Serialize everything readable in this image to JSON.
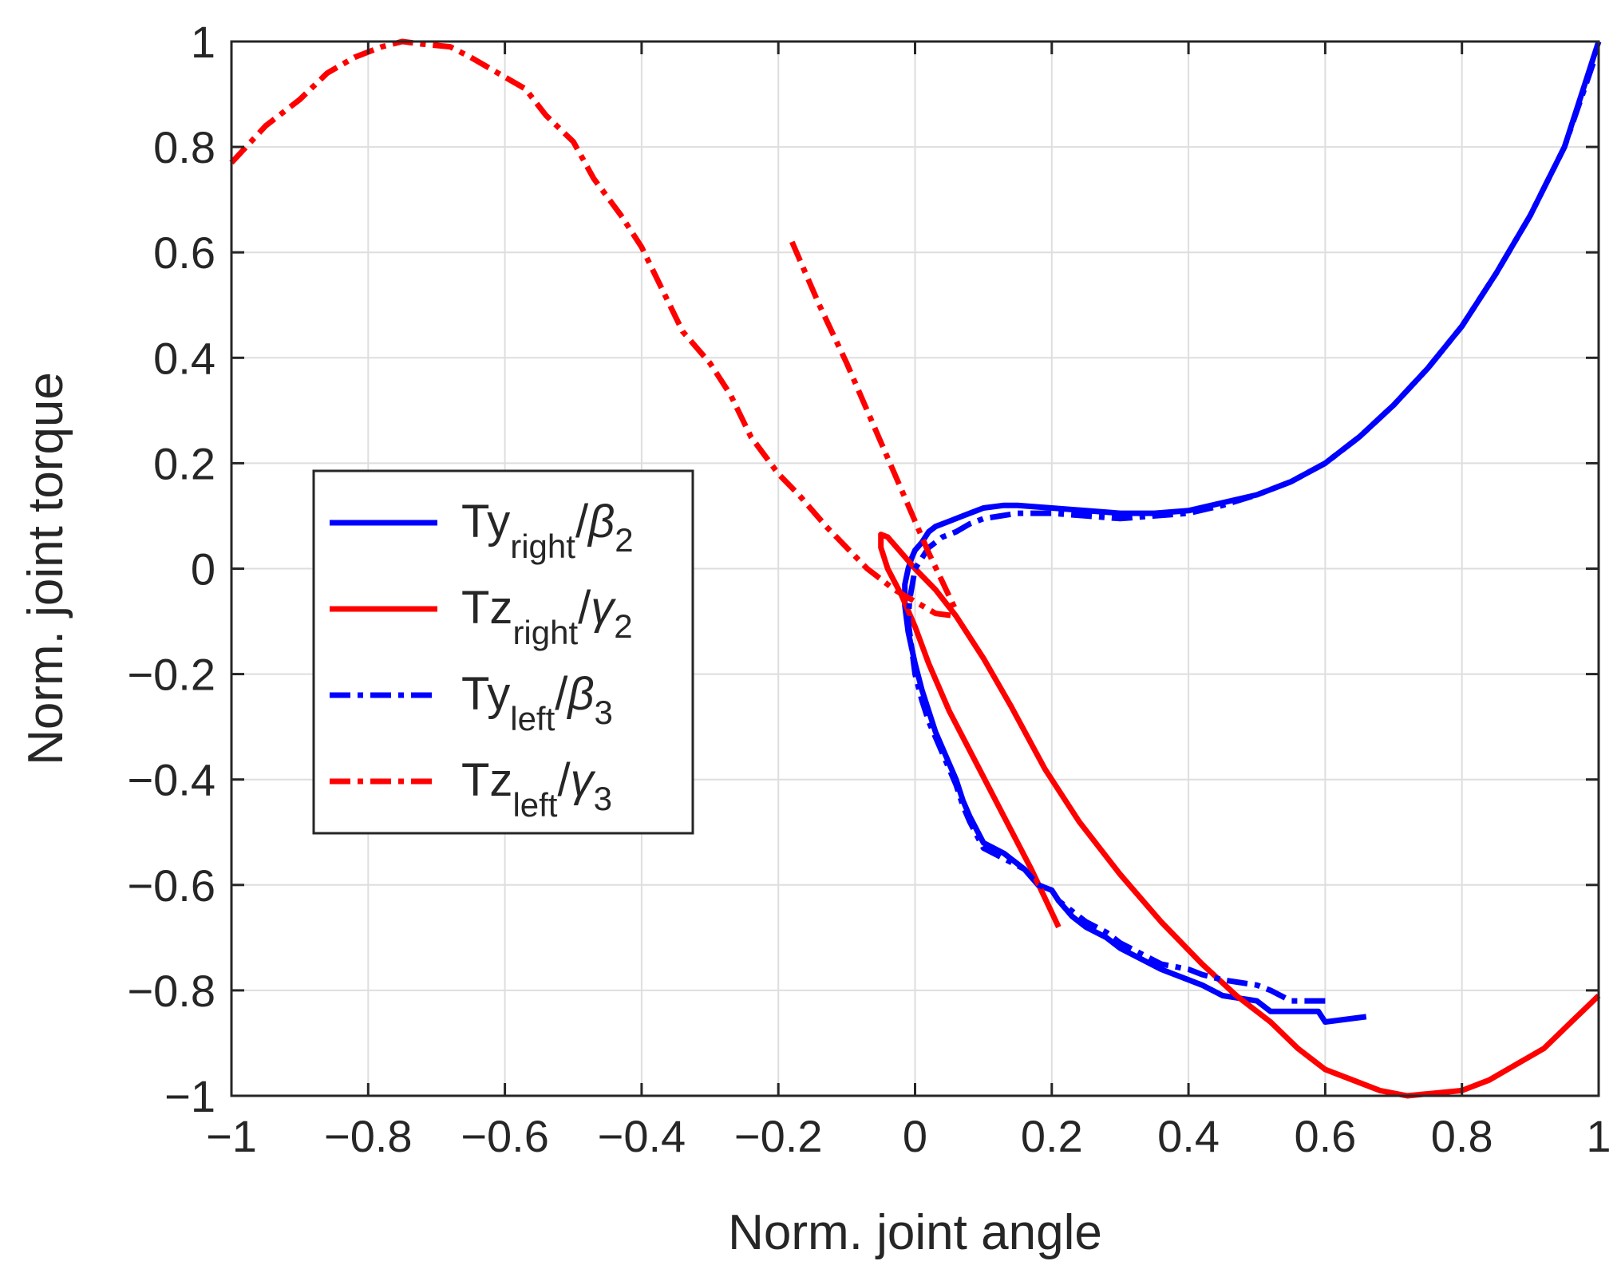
{
  "chart_data": {
    "type": "line",
    "title": "",
    "xlabel": "Norm. joint angle",
    "ylabel": "Norm. joint torque",
    "xlim": [
      -1,
      1
    ],
    "ylim": [
      -1,
      1
    ],
    "xticks": [
      -1,
      -0.8,
      -0.6,
      -0.4,
      -0.2,
      0,
      0.2,
      0.4,
      0.6,
      0.8,
      1
    ],
    "yticks": [
      -1,
      -0.8,
      -0.6,
      -0.4,
      -0.2,
      0,
      0.2,
      0.4,
      0.6,
      0.8,
      1
    ],
    "xtick_labels": [
      "−1",
      "−0.8",
      "−0.6",
      "−0.4",
      "−0.2",
      "0",
      "0.2",
      "0.4",
      "0.6",
      "0.8",
      "1"
    ],
    "ytick_labels": [
      "−1",
      "−0.8",
      "−0.6",
      "−0.4",
      "−0.2",
      "0",
      "0.2",
      "0.4",
      "0.6",
      "0.8",
      "1"
    ],
    "grid": true,
    "legend_position": "center-left",
    "series": [
      {
        "name": "Ty_right/β2",
        "legend": {
          "base": "Ty",
          "sub": "right",
          "sep": "/",
          "greek": "β",
          "greek_sub": "2"
        },
        "color": "#0000ff",
        "style": "solid",
        "x": [
          0.66,
          0.6,
          0.59,
          0.52,
          0.5,
          0.45,
          0.42,
          0.4,
          0.36,
          0.33,
          0.3,
          0.28,
          0.25,
          0.23,
          0.21,
          0.2,
          0.18,
          0.16,
          0.13,
          0.1,
          0.08,
          0.07,
          0.06,
          0.05,
          0.04,
          0.03,
          0.02,
          0.01,
          0.0,
          -0.01,
          -0.015,
          -0.015,
          -0.01,
          -0.005,
          0.0,
          0.01,
          0.02,
          0.03,
          0.05,
          0.07,
          0.09,
          0.1,
          0.13,
          0.15,
          0.2,
          0.25,
          0.3,
          0.35,
          0.4,
          0.45,
          0.5,
          0.55,
          0.6,
          0.65,
          0.7,
          0.75,
          0.8,
          0.85,
          0.9,
          0.95,
          1.0
        ],
        "y": [
          -0.85,
          -0.86,
          -0.84,
          -0.84,
          -0.82,
          -0.81,
          -0.79,
          -0.78,
          -0.76,
          -0.74,
          -0.72,
          -0.7,
          -0.68,
          -0.66,
          -0.63,
          -0.61,
          -0.6,
          -0.57,
          -0.54,
          -0.52,
          -0.47,
          -0.44,
          -0.4,
          -0.37,
          -0.34,
          -0.31,
          -0.27,
          -0.23,
          -0.18,
          -0.12,
          -0.07,
          -0.03,
          0.0,
          0.02,
          0.035,
          0.05,
          0.07,
          0.08,
          0.09,
          0.1,
          0.11,
          0.115,
          0.12,
          0.12,
          0.115,
          0.11,
          0.105,
          0.105,
          0.11,
          0.125,
          0.14,
          0.165,
          0.2,
          0.25,
          0.31,
          0.38,
          0.46,
          0.56,
          0.67,
          0.8,
          1.0
        ]
      },
      {
        "name": "Tz_right/γ2",
        "legend": {
          "base": "Tz",
          "sub": "right",
          "sep": "/",
          "greek": "γ",
          "greek_sub": "2"
        },
        "color": "#ff0000",
        "style": "solid",
        "x": [
          0.21,
          0.17,
          0.13,
          0.09,
          0.05,
          0.02,
          0.0,
          -0.02,
          -0.04,
          -0.05,
          -0.05,
          -0.04,
          -0.02,
          0.0,
          0.03,
          0.06,
          0.1,
          0.14,
          0.19,
          0.24,
          0.3,
          0.36,
          0.42,
          0.47,
          0.52,
          0.56,
          0.6,
          0.64,
          0.68,
          0.72,
          0.76,
          0.8,
          0.84,
          0.88,
          0.92,
          0.96,
          1.0
        ],
        "y": [
          -0.68,
          -0.57,
          -0.47,
          -0.37,
          -0.27,
          -0.18,
          -0.11,
          -0.05,
          0.0,
          0.04,
          0.065,
          0.06,
          0.03,
          0.0,
          -0.04,
          -0.09,
          -0.17,
          -0.26,
          -0.38,
          -0.48,
          -0.58,
          -0.67,
          -0.75,
          -0.81,
          -0.86,
          -0.91,
          -0.95,
          -0.97,
          -0.99,
          -1.0,
          -0.995,
          -0.99,
          -0.97,
          -0.94,
          -0.91,
          -0.86,
          -0.81
        ]
      },
      {
        "name": "Ty_left/β3",
        "legend": {
          "base": "Ty",
          "sub": "left",
          "sep": "/",
          "greek": "β",
          "greek_sub": "3"
        },
        "color": "#0000ff",
        "style": "dashdot",
        "x": [
          0.6,
          0.55,
          0.52,
          0.5,
          0.45,
          0.42,
          0.4,
          0.36,
          0.33,
          0.3,
          0.28,
          0.25,
          0.23,
          0.21,
          0.2,
          0.18,
          0.16,
          0.13,
          0.1,
          0.08,
          0.07,
          0.06,
          0.05,
          0.04,
          0.03,
          0.02,
          0.01,
          0.0,
          -0.005,
          -0.01,
          -0.008,
          -0.004,
          0.0,
          0.01,
          0.02,
          0.04,
          0.06,
          0.08,
          0.1,
          0.15,
          0.2,
          0.25,
          0.3,
          0.35,
          0.4,
          0.45,
          0.5,
          0.55,
          0.6,
          0.65,
          0.7,
          0.75,
          0.8,
          0.85,
          0.9,
          0.95,
          0.995
        ],
        "y": [
          -0.82,
          -0.82,
          -0.8,
          -0.79,
          -0.78,
          -0.77,
          -0.76,
          -0.75,
          -0.73,
          -0.71,
          -0.69,
          -0.67,
          -0.65,
          -0.63,
          -0.61,
          -0.6,
          -0.57,
          -0.55,
          -0.53,
          -0.48,
          -0.45,
          -0.41,
          -0.38,
          -0.35,
          -0.32,
          -0.29,
          -0.25,
          -0.2,
          -0.15,
          -0.1,
          -0.06,
          -0.03,
          0.0,
          0.02,
          0.04,
          0.06,
          0.07,
          0.085,
          0.095,
          0.105,
          0.105,
          0.1,
          0.095,
          0.1,
          0.105,
          0.12,
          0.14,
          0.165,
          0.2,
          0.25,
          0.31,
          0.38,
          0.46,
          0.56,
          0.67,
          0.8,
          0.97
        ]
      },
      {
        "name": "Tz_left/γ3",
        "legend": {
          "base": "Tz",
          "sub": "left",
          "sep": "/",
          "greek": "γ",
          "greek_sub": "3"
        },
        "color": "#ff0000",
        "style": "dashdot",
        "x": [
          -1.0,
          -0.95,
          -0.9,
          -0.86,
          -0.82,
          -0.78,
          -0.75,
          -0.72,
          -0.68,
          -0.65,
          -0.61,
          -0.57,
          -0.54,
          -0.5,
          -0.47,
          -0.43,
          -0.4,
          -0.37,
          -0.34,
          -0.3,
          -0.27,
          -0.24,
          -0.2,
          -0.17,
          -0.13,
          -0.1,
          -0.07,
          -0.05,
          -0.03,
          -0.01,
          0.01,
          0.03,
          0.06
        ],
        "y": [
          0.77,
          0.84,
          0.89,
          0.94,
          0.97,
          0.99,
          1.0,
          0.995,
          0.99,
          0.97,
          0.94,
          0.91,
          0.86,
          0.81,
          0.74,
          0.67,
          0.61,
          0.53,
          0.45,
          0.39,
          0.33,
          0.25,
          0.18,
          0.14,
          0.08,
          0.04,
          0.0,
          -0.02,
          -0.04,
          -0.055,
          -0.07,
          -0.085,
          -0.09
        ]
      },
      {
        "name": "Tz_left/γ3 (segment)",
        "color": "#ff0000",
        "style": "dashdot",
        "in_legend": false,
        "x": [
          -0.18,
          -0.14,
          -0.1,
          -0.06,
          -0.02,
          0.02,
          0.06
        ],
        "y": [
          0.62,
          0.5,
          0.39,
          0.27,
          0.15,
          0.03,
          -0.08
        ]
      }
    ]
  }
}
